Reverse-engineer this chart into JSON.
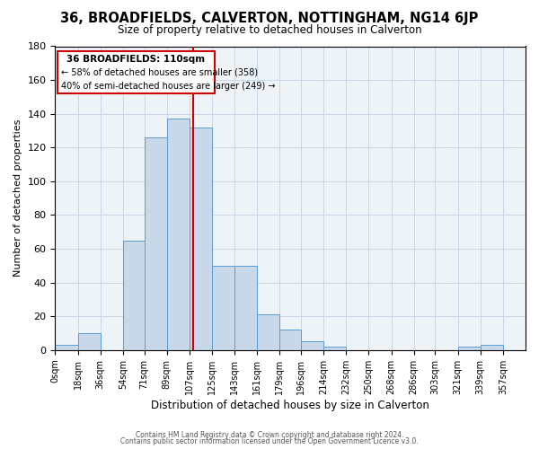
{
  "title": "36, BROADFIELDS, CALVERTON, NOTTINGHAM, NG14 6JP",
  "subtitle": "Size of property relative to detached houses in Calverton",
  "xlabel": "Distribution of detached houses by size in Calverton",
  "ylabel": "Number of detached properties",
  "bar_left_edges": [
    0,
    18,
    36,
    54,
    71,
    89,
    107,
    125,
    143,
    161,
    179,
    196,
    214,
    232,
    250,
    268,
    286,
    303,
    321,
    339
  ],
  "bar_heights": [
    3,
    10,
    0,
    65,
    126,
    137,
    132,
    50,
    50,
    21,
    12,
    5,
    2,
    0,
    0,
    0,
    0,
    0,
    2,
    3
  ],
  "bar_widths": [
    18,
    18,
    17,
    17,
    18,
    18,
    18,
    18,
    18,
    18,
    17,
    18,
    18,
    18,
    18,
    18,
    17,
    18,
    18,
    18
  ],
  "tick_labels": [
    "0sqm",
    "18sqm",
    "36sqm",
    "54sqm",
    "71sqm",
    "89sqm",
    "107sqm",
    "125sqm",
    "143sqm",
    "161sqm",
    "179sqm",
    "196sqm",
    "214sqm",
    "232sqm",
    "250sqm",
    "268sqm",
    "286sqm",
    "303sqm",
    "321sqm",
    "339sqm",
    "357sqm"
  ],
  "tick_positions": [
    0,
    18,
    36,
    54,
    71,
    89,
    107,
    125,
    143,
    161,
    179,
    196,
    214,
    232,
    250,
    268,
    286,
    303,
    321,
    339,
    357
  ],
  "bar_color": "#c8d8e8",
  "bar_edgecolor": "#5b9bd5",
  "vline_x": 110,
  "vline_color": "#cc0000",
  "ylim": [
    0,
    180
  ],
  "yticks": [
    0,
    20,
    40,
    60,
    80,
    100,
    120,
    140,
    160,
    180
  ],
  "annotation_title": "36 BROADFIELDS: 110sqm",
  "annotation_line1": "← 58% of detached houses are smaller (358)",
  "annotation_line2": "40% of semi-detached houses are larger (249) →",
  "annotation_box_color": "#cc0000",
  "grid_color": "#c8d8e8",
  "background_color": "#eef3f8",
  "footer1": "Contains HM Land Registry data © Crown copyright and database right 2024.",
  "footer2": "Contains public sector information licensed under the Open Government Licence v3.0."
}
